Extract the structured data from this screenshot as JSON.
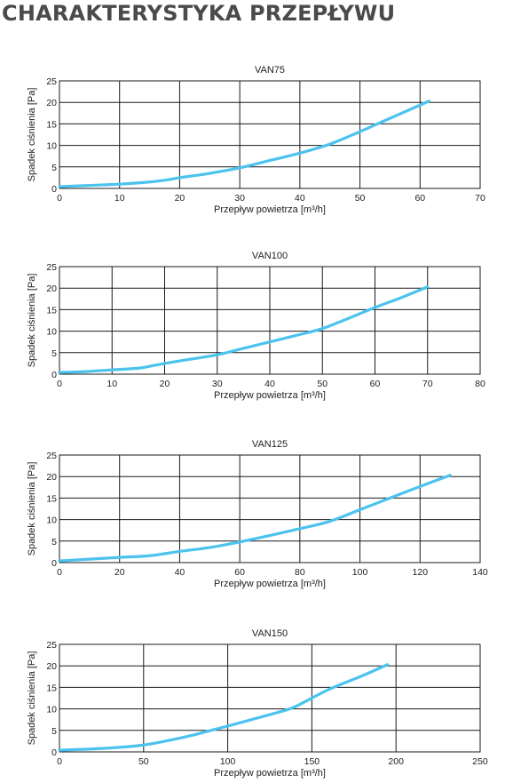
{
  "page": {
    "title": "CHARAKTERYSTYKA PRZEPŁYWU"
  },
  "style": {
    "curve_color": "#4cc3ee",
    "grid_color": "#1a1a1a"
  },
  "chart_data": [
    {
      "type": "line",
      "title": "VAN75",
      "xlabel": "Przepływ powietrza [m³/h]",
      "ylabel": "Spadek ciśnienia [Pa]",
      "xlim": [
        0,
        70
      ],
      "ylim": [
        0,
        25
      ],
      "xticks": [
        0,
        10,
        20,
        30,
        40,
        50,
        60,
        70
      ],
      "yticks": [
        0,
        5,
        10,
        15,
        20,
        25
      ],
      "grid": true,
      "series": [
        {
          "x": [
            0,
            5,
            10,
            15,
            18,
            20,
            25,
            30,
            35,
            40,
            45,
            50,
            55,
            61.5
          ],
          "y": [
            0.4,
            0.7,
            1.0,
            1.5,
            2.0,
            2.5,
            3.5,
            4.8,
            6.5,
            8.2,
            10.3,
            13.2,
            16.3,
            20.3
          ]
        }
      ]
    },
    {
      "type": "line",
      "title": "VAN100",
      "xlabel": "Przepływ powietrza [m³/h]",
      "ylabel": "Spadek ciśnienia [Pa]",
      "xlim": [
        0,
        80
      ],
      "ylim": [
        0,
        25
      ],
      "xticks": [
        0,
        10,
        20,
        30,
        40,
        50,
        60,
        70,
        80
      ],
      "yticks": [
        0,
        5,
        10,
        15,
        20,
        25
      ],
      "grid": true,
      "series": [
        {
          "x": [
            0,
            5,
            10,
            15,
            17,
            20,
            25,
            30,
            35,
            40,
            45,
            50,
            55,
            60,
            65,
            70
          ],
          "y": [
            0.4,
            0.6,
            1.0,
            1.4,
            1.8,
            2.5,
            3.5,
            4.5,
            6.0,
            7.5,
            9.0,
            10.6,
            13.0,
            15.5,
            17.8,
            20.3
          ]
        }
      ]
    },
    {
      "type": "line",
      "title": "VAN125",
      "xlabel": "Przepływ powietrza [m³/h]",
      "ylabel": "Spadek ciśnienia [Pa]",
      "xlim": [
        0,
        140
      ],
      "ylim": [
        0,
        25
      ],
      "xticks": [
        0,
        20,
        40,
        60,
        80,
        100,
        120,
        140
      ],
      "yticks": [
        0,
        5,
        10,
        15,
        20,
        25
      ],
      "grid": true,
      "series": [
        {
          "x": [
            0,
            10,
            20,
            30,
            40,
            50,
            60,
            70,
            80,
            90,
            100,
            110,
            120,
            130
          ],
          "y": [
            0.4,
            0.8,
            1.2,
            1.6,
            2.6,
            3.5,
            4.8,
            6.3,
            7.9,
            9.6,
            12.3,
            15.0,
            17.7,
            20.3
          ]
        }
      ]
    },
    {
      "type": "line",
      "title": "VAN150",
      "xlabel": "Przepływ powietrza [m³/h]",
      "ylabel": "Spadek ciśnienia [Pa]",
      "xlim": [
        0,
        250
      ],
      "ylim": [
        0,
        25
      ],
      "xticks": [
        0,
        50,
        100,
        150,
        200,
        250
      ],
      "yticks": [
        0,
        5,
        10,
        15,
        20,
        25
      ],
      "grid": true,
      "series": [
        {
          "x": [
            0,
            25,
            50,
            75,
            90,
            100,
            115,
            130,
            140,
            160,
            180,
            195
          ],
          "y": [
            0.4,
            0.8,
            1.6,
            3.5,
            5.0,
            6.0,
            7.6,
            9.2,
            10.5,
            14.5,
            17.7,
            20.3
          ]
        }
      ]
    }
  ]
}
